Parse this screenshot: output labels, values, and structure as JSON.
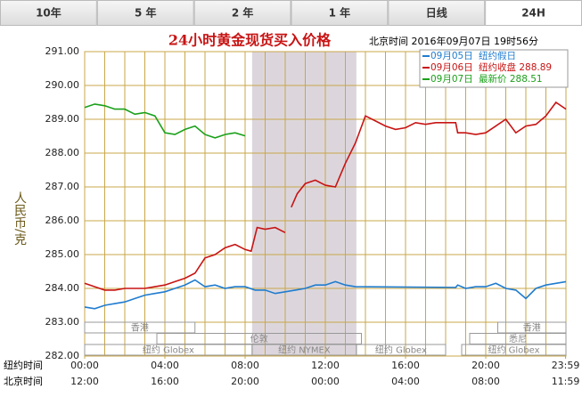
{
  "tabs": [
    "10年",
    "5 年",
    "2 年",
    "1 年",
    "日线",
    "24H"
  ],
  "active_tab": 5,
  "chart_data": {
    "type": "line",
    "title": "24小时黄金现货买入价格",
    "timestamp": "北京时间  2016年09月07日 19时56分",
    "ylabel": "人民币/克",
    "xlabel": "纽约时间",
    "xlabel2": "北京时间",
    "xlim": [
      0,
      24
    ],
    "ylim": [
      282,
      291
    ],
    "yticks": [
      {
        "value": 282,
        "label": "282.00"
      },
      {
        "value": 283,
        "label": "283.00"
      },
      {
        "value": 284,
        "label": "284.00"
      },
      {
        "value": 285,
        "label": "285.00"
      },
      {
        "value": 286,
        "label": "286.00"
      },
      {
        "value": 287,
        "label": "287.00"
      },
      {
        "value": 288,
        "label": "288.00"
      },
      {
        "value": 289,
        "label": "289.00"
      },
      {
        "value": 290,
        "label": "290.00"
      },
      {
        "value": 291,
        "label": "291.00"
      }
    ],
    "xticks": [
      {
        "value": 0,
        "label": "00:00"
      },
      {
        "value": 4,
        "label": "04:00"
      },
      {
        "value": 8,
        "label": "08:00"
      },
      {
        "value": 12,
        "label": "12:00"
      },
      {
        "value": 16,
        "label": "16:00"
      },
      {
        "value": 20,
        "label": "20:00"
      },
      {
        "value": 23.98,
        "label": "23:59"
      }
    ],
    "xticks2": [
      {
        "value": 0,
        "label": "12:00"
      },
      {
        "value": 4,
        "label": "16:00"
      },
      {
        "value": 8,
        "label": "20:00"
      },
      {
        "value": 12,
        "label": "00:00"
      },
      {
        "value": 16,
        "label": "04:00"
      },
      {
        "value": 20,
        "label": "08:00"
      },
      {
        "value": 23.98,
        "label": "11:59"
      }
    ],
    "xgrid": [
      0,
      1,
      2,
      3,
      4,
      5,
      6,
      7,
      8,
      9,
      10,
      11,
      12,
      13,
      14,
      15,
      16,
      17,
      18,
      19,
      20,
      21,
      22,
      23,
      24
    ],
    "shaded_range": [
      8.35,
      13.55
    ],
    "grid": true,
    "grid_color": "#c9a74a",
    "sessions": [
      [
        {
          "label": "香港",
          "start": 0,
          "end": 5.5
        },
        {
          "label": "香港",
          "start": 20.6,
          "end": 24
        }
      ],
      [
        {
          "label": "伦敦",
          "start": 3.6,
          "end": 13.8
        },
        {
          "label": "悉尼",
          "start": 19.2,
          "end": 24
        }
      ],
      [
        {
          "label": "纽约 Globex",
          "start": 0,
          "end": 8.35
        },
        {
          "label": "纽约 NYMEX",
          "start": 8.35,
          "end": 13.55
        },
        {
          "label": "纽约 Globex",
          "start": 13.55,
          "end": 18
        },
        {
          "label": "纽约 Globex",
          "start": 18.8,
          "end": 24
        }
      ]
    ],
    "series": [
      {
        "name": "09月05日",
        "note": "纽约假日",
        "color": "#1f7ccf",
        "x": [
          0,
          0.5,
          1,
          1.5,
          2,
          2.5,
          3,
          3.5,
          4,
          4.5,
          5,
          5.5,
          6,
          6.5,
          7,
          7.5,
          8,
          8.5,
          9,
          9.5,
          10,
          10.5,
          11,
          11.5,
          12,
          12.5,
          13,
          13.5,
          18.5,
          18.6,
          19,
          19.5,
          20,
          20.5,
          21,
          21.5,
          22,
          22.5,
          23,
          23.5,
          24
        ],
        "values": [
          283.45,
          283.4,
          283.5,
          283.55,
          283.6,
          283.7,
          283.8,
          283.85,
          283.9,
          284.0,
          284.1,
          284.25,
          284.05,
          284.1,
          284.0,
          284.05,
          284.05,
          283.95,
          283.95,
          283.85,
          283.9,
          283.95,
          284.0,
          284.1,
          284.1,
          284.2,
          284.1,
          284.05,
          284.03,
          284.1,
          284.0,
          284.05,
          284.05,
          284.15,
          284.0,
          283.95,
          283.7,
          284.0,
          284.1,
          284.15,
          284.2
        ]
      },
      {
        "name": "09月06日",
        "note": "纽约收盘 288.89",
        "color": "#c81414",
        "x": [
          0,
          0.5,
          1,
          1.5,
          2,
          2.5,
          3,
          3.5,
          4,
          4.5,
          5,
          5.5,
          6,
          6.5,
          7,
          7.5,
          8,
          8.3,
          8.6,
          9,
          9.5,
          10,
          10.2,
          10.3,
          10.6,
          11,
          11.5,
          12,
          12.5,
          13,
          13.5,
          14,
          14.5,
          15,
          15.5,
          16,
          16.5,
          17,
          17.5,
          18,
          18.5,
          18.6,
          19,
          19.5,
          20,
          20.5,
          21,
          21.5,
          22,
          22.5,
          23,
          23.5,
          24
        ],
        "values": [
          284.15,
          284.05,
          283.95,
          283.95,
          284.0,
          284.0,
          284.0,
          284.05,
          284.1,
          284.2,
          284.3,
          284.45,
          284.9,
          285.0,
          285.2,
          285.3,
          285.15,
          285.1,
          285.8,
          285.75,
          285.8,
          285.65,
          null,
          286.4,
          286.8,
          287.1,
          287.2,
          287.05,
          287.0,
          287.7,
          288.3,
          289.1,
          288.95,
          288.8,
          288.7,
          288.75,
          288.9,
          288.85,
          288.9,
          288.9,
          288.9,
          288.6,
          288.6,
          288.55,
          288.6,
          288.8,
          289.0,
          288.6,
          288.8,
          288.85,
          289.1,
          289.5,
          289.3
        ]
      },
      {
        "name": "09月07日",
        "note": "最新价 288.51",
        "color": "#1aa01a",
        "x": [
          0,
          0.5,
          1,
          1.5,
          2,
          2.5,
          3,
          3.5,
          4,
          4.5,
          5,
          5.5,
          6,
          6.5,
          7,
          7.5,
          8
        ],
        "values": [
          289.35,
          289.45,
          289.4,
          289.3,
          289.3,
          289.15,
          289.2,
          289.1,
          288.6,
          288.55,
          288.7,
          288.8,
          288.55,
          288.45,
          288.55,
          288.6,
          288.51
        ]
      }
    ]
  }
}
